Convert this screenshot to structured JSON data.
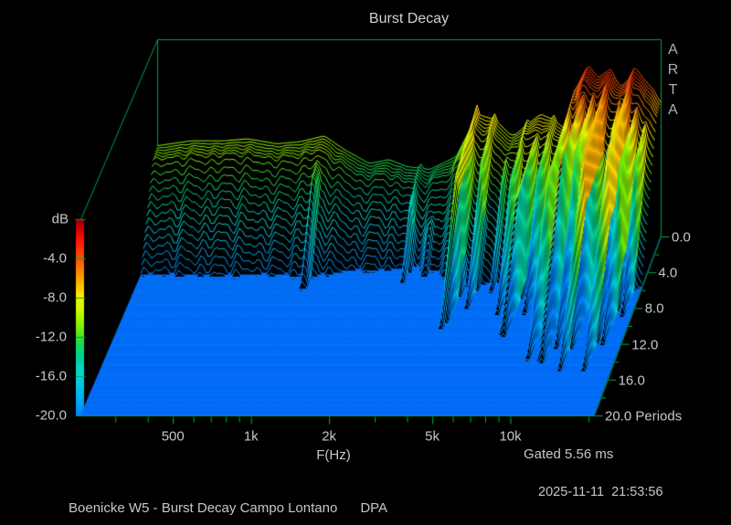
{
  "header": {
    "title": "Burst Decay"
  },
  "watermark": {
    "text": "ARTA"
  },
  "footer": {
    "annotation": "Boenicke W5 - Burst Decay Campo Lontano      DPA",
    "timestamp": "2025-11-11  21:53:56"
  },
  "chart_data": {
    "type": "line",
    "variant": "3d-waterfall-burst-decay",
    "title": "Burst Decay",
    "xlabel": "F(Hz)",
    "x_scale": "log",
    "x_range_hz": [
      220,
      21000
    ],
    "x_major_ticks": [
      {
        "hz": 500,
        "label": "500"
      },
      {
        "hz": 1000,
        "label": "1k"
      },
      {
        "hz": 2000,
        "label": "2k"
      },
      {
        "hz": 5000,
        "label": "5k"
      },
      {
        "hz": 10000,
        "label": "10k"
      }
    ],
    "x_minor_ticks_hz": [
      300,
      400,
      500,
      600,
      700,
      800,
      900,
      1000,
      2000,
      3000,
      4000,
      5000,
      6000,
      7000,
      8000,
      9000,
      10000,
      20000
    ],
    "db_axis": {
      "label": "dB",
      "range": [
        -20,
        0
      ],
      "ticks": [
        {
          "db": -4,
          "label": "-4.0"
        },
        {
          "db": -8,
          "label": "-8.0"
        },
        {
          "db": -12,
          "label": "-12.0"
        },
        {
          "db": -16,
          "label": "-16.0"
        },
        {
          "db": -20,
          "label": "-20.0"
        }
      ]
    },
    "period_axis": {
      "label": "Periods",
      "range": [
        0,
        20
      ],
      "minor_step": 2,
      "ticks": [
        {
          "p": 0,
          "label": "0.0"
        },
        {
          "p": 4,
          "label": "4.0"
        },
        {
          "p": 8,
          "label": "8.0"
        },
        {
          "p": 12,
          "label": "12.0"
        },
        {
          "p": 16,
          "label": "16.0"
        },
        {
          "p": 20,
          "label": "20.0 Periods"
        }
      ]
    },
    "gated_label": "Gated 5.56 ms",
    "n_slices": 90,
    "colors": {
      "background": "#000000",
      "floor": "#0468F8",
      "box": "#00A04A",
      "tick": "#00B43C",
      "label": "#C2C7CD",
      "colormap": [
        [
          0,
          "#8F0000"
        ],
        [
          -1,
          "#D40000"
        ],
        [
          -2.5,
          "#FF1E00"
        ],
        [
          -4,
          "#FF5000"
        ],
        [
          -5.5,
          "#FF8C00"
        ],
        [
          -7,
          "#FFC800"
        ],
        [
          -8,
          "#F8F400"
        ],
        [
          -9.5,
          "#C4FC00"
        ],
        [
          -11,
          "#7CF000"
        ],
        [
          -12.5,
          "#22DC48"
        ],
        [
          -14,
          "#00CE96"
        ],
        [
          -15.5,
          "#00DCC8"
        ],
        [
          -17,
          "#00C6E6"
        ],
        [
          -18.5,
          "#00A6F6"
        ],
        [
          -20,
          "#0084FF"
        ]
      ]
    },
    "response_db_at_0_periods": [
      [
        220,
        -10.8
      ],
      [
        300,
        -10.3
      ],
      [
        400,
        -10.3
      ],
      [
        500,
        -10.1
      ],
      [
        650,
        -10.6
      ],
      [
        800,
        -10.4
      ],
      [
        1000,
        -9.8
      ],
      [
        1200,
        -11.2
      ],
      [
        1500,
        -12.6
      ],
      [
        1800,
        -12.2
      ],
      [
        2100,
        -12.9
      ],
      [
        2600,
        -13.2
      ],
      [
        3300,
        -11.9
      ],
      [
        4000,
        -7.6
      ],
      [
        4700,
        -8.2
      ],
      [
        5500,
        -9.9
      ],
      [
        6300,
        -8.6
      ],
      [
        7100,
        -7.6
      ],
      [
        8000,
        -8.2
      ],
      [
        8900,
        -9.2
      ],
      [
        9600,
        -5.4
      ],
      [
        10400,
        -3.6
      ],
      [
        10900,
        -2.6
      ],
      [
        11900,
        -3.9
      ],
      [
        13400,
        -3.0
      ],
      [
        14300,
        -4.6
      ],
      [
        15200,
        -4.8
      ],
      [
        16600,
        -2.8
      ],
      [
        18000,
        -4.0
      ],
      [
        19500,
        -5.0
      ],
      [
        21000,
        -6.4
      ]
    ],
    "broadband_decay_db_per_period": [
      [
        220,
        2.8
      ],
      [
        800,
        2.8
      ],
      [
        1200,
        2.65
      ],
      [
        2500,
        2.55
      ],
      [
        4000,
        2.4
      ],
      [
        9000,
        2.6
      ],
      [
        21000,
        2.9
      ]
    ],
    "broadband_knee": {
      "early_decay": 0.4,
      "knee_periods": 1.2
    },
    "resonance_falloff_db_per_sigma": 25,
    "resonances": [
      [
        1000,
        -9.2,
        0.025,
        0.3,
        3,
        2.8
      ],
      [
        2400,
        -12.6,
        0.03,
        0.35,
        3,
        2.6
      ],
      [
        2850,
        -13.0,
        0.02,
        0.3,
        3,
        2.4
      ],
      [
        4000,
        -6.6,
        0.035,
        0.25,
        6,
        2.6
      ],
      [
        4700,
        -7.3,
        0.02,
        0.3,
        4,
        2.6
      ],
      [
        5500,
        -9.7,
        0.018,
        0.5,
        3,
        2.6
      ],
      [
        6300,
        -8.1,
        0.022,
        0.3,
        5,
        2.6
      ],
      [
        7100,
        -7.0,
        0.025,
        0.2,
        7,
        2.4
      ],
      [
        8000,
        -7.7,
        0.015,
        0.3,
        5,
        2.8
      ],
      [
        9600,
        -4.9,
        0.022,
        0.2,
        8,
        2.2
      ],
      [
        10900,
        -2.0,
        0.02,
        0.12,
        8,
        2.4
      ],
      [
        11900,
        -3.4,
        0.014,
        0.15,
        7,
        2.6
      ],
      [
        13400,
        -2.5,
        0.018,
        0.12,
        8,
        2.2
      ],
      [
        15200,
        -4.3,
        0.011,
        0.3,
        4,
        3.0
      ],
      [
        16600,
        -2.3,
        0.016,
        0.12,
        8,
        2.2
      ],
      [
        18000,
        -3.6,
        0.013,
        0.2,
        7,
        2.6
      ],
      [
        19500,
        -4.6,
        0.011,
        0.3,
        5,
        3.0
      ]
    ]
  }
}
